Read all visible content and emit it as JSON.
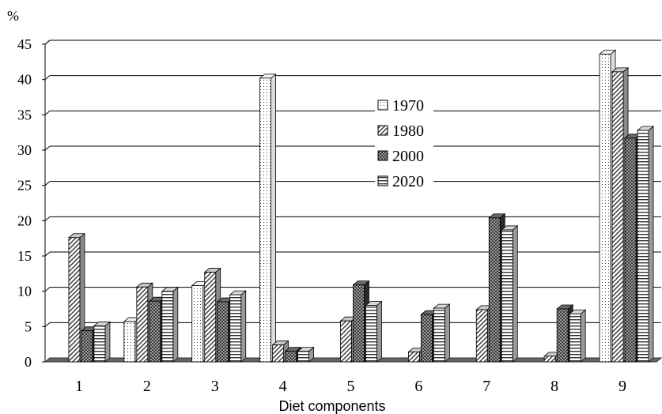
{
  "chart_data": {
    "type": "bar",
    "title": "",
    "ylabel": "%",
    "xlabel": "Diet components",
    "categories": [
      "1",
      "2",
      "3",
      "4",
      "5",
      "6",
      "7",
      "8",
      "9"
    ],
    "ylim": [
      0,
      45
    ],
    "yticks": [
      "0",
      "5",
      "10",
      "15",
      "20",
      "25",
      "30",
      "35",
      "40",
      "45"
    ],
    "grid": true,
    "legend_position": "center-top",
    "style": "3d-bars-hatched",
    "series": [
      {
        "name": "1970",
        "pattern": "dots",
        "values": [
          0,
          5.7,
          10.8,
          40.2,
          0,
          0,
          0,
          0,
          43.6
        ]
      },
      {
        "name": "1980",
        "pattern": "diagonal-lines",
        "values": [
          17.6,
          10.6,
          12.7,
          2.4,
          5.8,
          1.4,
          7.4,
          0.8,
          41.1
        ]
      },
      {
        "name": "2000",
        "pattern": "crosshatch-dark",
        "values": [
          4.4,
          8.6,
          8.5,
          1.5,
          10.9,
          6.7,
          20.4,
          7.5,
          31.7
        ]
      },
      {
        "name": "2020",
        "pattern": "horizontal-lines",
        "values": [
          5.1,
          10.0,
          9.5,
          1.5,
          8.0,
          7.6,
          18.7,
          6.8,
          32.8
        ]
      }
    ]
  }
}
